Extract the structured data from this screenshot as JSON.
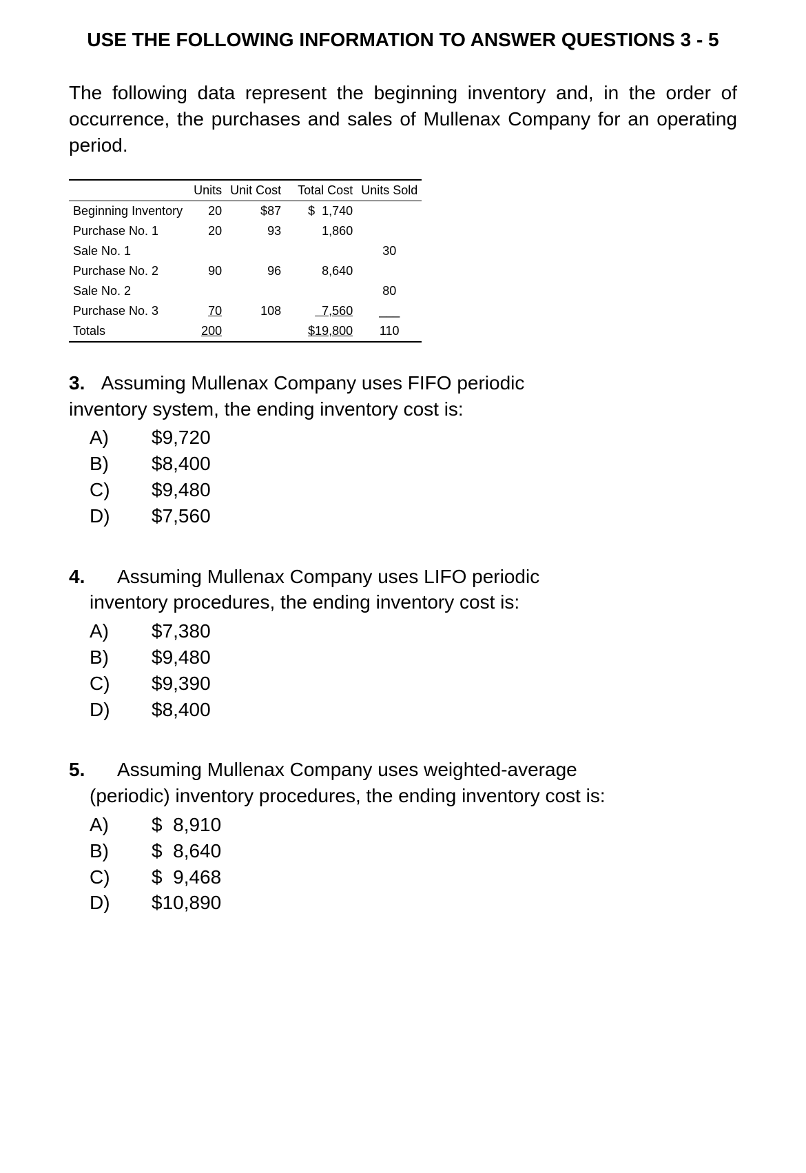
{
  "title": "USE THE FOLLOWING INFORMATION TO ANSWER QUESTIONS 3 - 5",
  "intro": "The following data represent the beginning inventory and, in the order of occurrence, the purchases and sales of Mullenax Company for an operating period.",
  "table": {
    "headers": [
      "",
      "Units",
      "Unit Cost",
      "Total Cost",
      "Units Sold"
    ],
    "rows": [
      {
        "label": "Beginning Inventory",
        "units": "20",
        "unit_cost": "$87",
        "total_cost": "$  1,740",
        "units_sold": ""
      },
      {
        "label": "Purchase No. 1",
        "units": "20",
        "unit_cost": "93",
        "total_cost": "1,860",
        "units_sold": ""
      },
      {
        "label": "Sale No. 1",
        "units": "",
        "unit_cost": "",
        "total_cost": "",
        "units_sold": "30"
      },
      {
        "label": "Purchase No. 2",
        "units": "90",
        "unit_cost": "96",
        "total_cost": "8,640",
        "units_sold": ""
      },
      {
        "label": "Sale No. 2",
        "units": "",
        "unit_cost": "",
        "total_cost": "",
        "units_sold": "80"
      },
      {
        "label": "Purchase No. 3",
        "units": " 70",
        "unit_cost": "108",
        "total_cost": "  7,560",
        "units_sold": "___",
        "underline": true
      }
    ],
    "totals": {
      "label": "Totals",
      "units": "200",
      "unit_cost": "",
      "total_cost": "$19,800",
      "units_sold": "110"
    }
  },
  "questions": [
    {
      "num": "3.",
      "stem_first": "Assuming Mullenax Company uses FIFO periodic",
      "stem_rest": "inventory system, the ending inventory cost is:",
      "indent_rest": false,
      "options": [
        {
          "letter": "A)",
          "text": "$9,720"
        },
        {
          "letter": "B)",
          "text": "$8,400"
        },
        {
          "letter": "C)",
          "text": "$9,480"
        },
        {
          "letter": "D)",
          "text": "$7,560"
        }
      ]
    },
    {
      "num": "4.",
      "stem_first": "Assuming Mullenax Company uses LIFO periodic",
      "stem_rest": "inventory procedures, the ending inventory cost is:",
      "indent_rest": true,
      "options": [
        {
          "letter": "A)",
          "text": "$7,380"
        },
        {
          "letter": "B)",
          "text": "$9,480"
        },
        {
          "letter": "C)",
          "text": "$9,390"
        },
        {
          "letter": "D)",
          "text": "$8,400"
        }
      ]
    },
    {
      "num": "5.",
      "stem_first": "Assuming Mullenax Company uses weighted-average",
      "stem_rest": "(periodic) inventory procedures, the ending inventory cost is:",
      "indent_rest": true,
      "options": [
        {
          "letter": "A)",
          "text": "$  8,910"
        },
        {
          "letter": "B)",
          "text": "$  8,640"
        },
        {
          "letter": "C)",
          "text": "$  9,468"
        },
        {
          "letter": "D)",
          "text": "$10,890"
        }
      ]
    }
  ]
}
